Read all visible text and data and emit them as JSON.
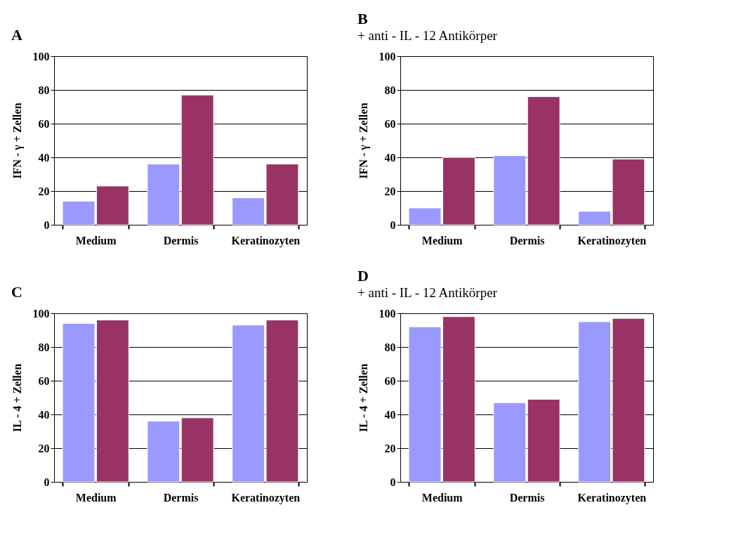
{
  "chart_data": [
    {
      "type": "bar",
      "title": "A",
      "ylabel": "IFN - γ + Zellen",
      "categories": [
        "Medium",
        "Dermis",
        "Keratinozyten"
      ],
      "ylim": [
        0,
        100
      ],
      "yticks": [
        0,
        20,
        40,
        60,
        80,
        100
      ],
      "grid": "y",
      "series": [
        {
          "color": "#9999ff",
          "values": [
            14,
            36,
            16
          ]
        },
        {
          "color": "#993366",
          "values": [
            23,
            77,
            36
          ]
        }
      ]
    },
    {
      "type": "bar",
      "title": "B",
      "subtitle": "+ anti - IL - 12 Antikörper",
      "ylabel": "IFN - γ + Zellen",
      "categories": [
        "Medium",
        "Dermis",
        "Keratinozyten"
      ],
      "ylim": [
        0,
        100
      ],
      "yticks": [
        0,
        20,
        40,
        60,
        80,
        100
      ],
      "grid": "y",
      "series": [
        {
          "color": "#9999ff",
          "values": [
            10,
            41,
            8
          ]
        },
        {
          "color": "#993366",
          "values": [
            40,
            76,
            39
          ]
        }
      ]
    },
    {
      "type": "bar",
      "title": "C",
      "ylabel": "IL - 4 + Zellen",
      "categories": [
        "Medium",
        "Dermis",
        "Keratinozyten"
      ],
      "ylim": [
        0,
        100
      ],
      "yticks": [
        0,
        20,
        40,
        60,
        80,
        100
      ],
      "grid": "y",
      "series": [
        {
          "color": "#9999ff",
          "values": [
            94,
            36,
            93
          ]
        },
        {
          "color": "#993366",
          "values": [
            96,
            38,
            96
          ]
        }
      ]
    },
    {
      "type": "bar",
      "title": "D",
      "subtitle": "+ anti - IL - 12 Antikörper",
      "ylabel": "IL - 4 + Zellen",
      "categories": [
        "Medium",
        "Dermis",
        "Keratinozyten"
      ],
      "ylim": [
        0,
        100
      ],
      "yticks": [
        0,
        20,
        40,
        60,
        80,
        100
      ],
      "grid": "y",
      "series": [
        {
          "color": "#9999ff",
          "values": [
            92,
            47,
            95
          ]
        },
        {
          "color": "#993366",
          "values": [
            98,
            49,
            97
          ]
        }
      ]
    }
  ]
}
